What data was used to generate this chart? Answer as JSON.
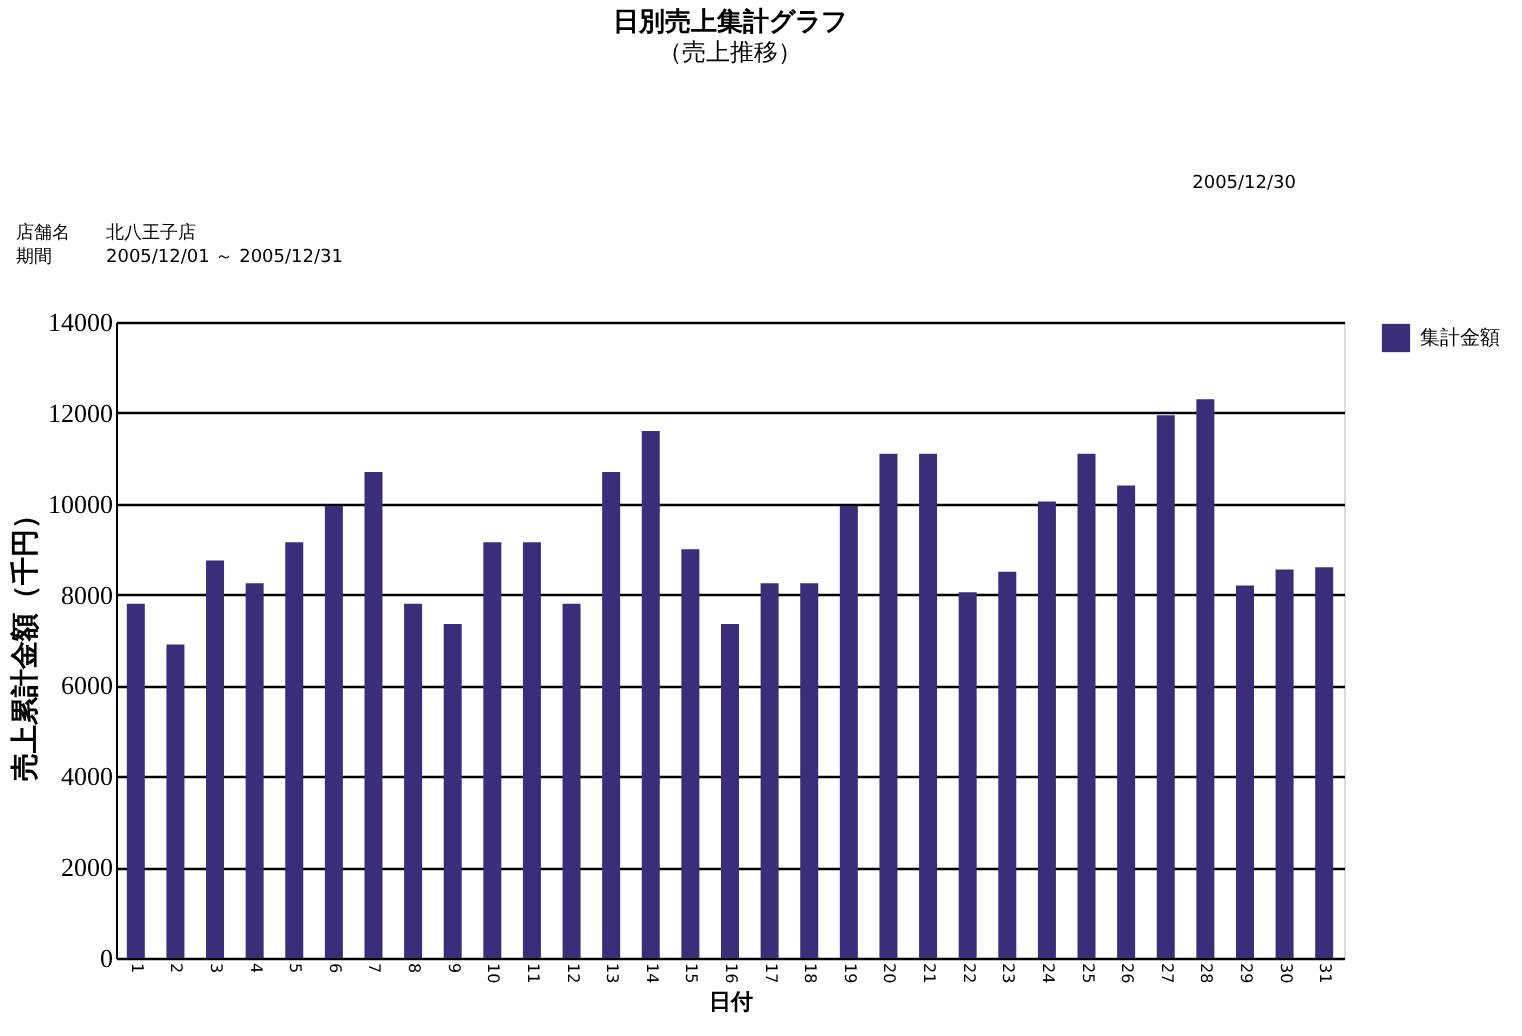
{
  "chart_data": {
    "type": "bar",
    "title": "日別売上集計グラフ",
    "subtitle": "（売上推移）",
    "xlabel": "日付",
    "ylabel": "売上累計金額（千円）",
    "categories": [
      "1",
      "2",
      "3",
      "4",
      "5",
      "6",
      "7",
      "8",
      "9",
      "10",
      "11",
      "12",
      "13",
      "14",
      "15",
      "16",
      "17",
      "18",
      "19",
      "20",
      "21",
      "22",
      "23",
      "24",
      "25",
      "26",
      "27",
      "28",
      "29",
      "30",
      "31"
    ],
    "series": [
      {
        "name": "集計金額",
        "color": "#3b2d7a",
        "values": [
          7800,
          6900,
          8750,
          8250,
          9150,
          9950,
          10700,
          7800,
          7350,
          9150,
          9150,
          7800,
          10700,
          11600,
          9000,
          7350,
          8250,
          8250,
          9950,
          11100,
          11100,
          8050,
          8500,
          10050,
          11100,
          10400,
          11950,
          12300,
          8200,
          8550,
          8600
        ]
      }
    ],
    "ylim": [
      0,
      14000
    ],
    "yticks": [
      0,
      2000,
      4000,
      6000,
      8000,
      10000,
      12000,
      14000
    ],
    "grid": "y",
    "legend": "top right",
    "annotations": [
      "2005/12/30",
      "店舗名",
      "北八王子店",
      "期間",
      "2005/12/01 ～ 2005/12/31"
    ]
  }
}
